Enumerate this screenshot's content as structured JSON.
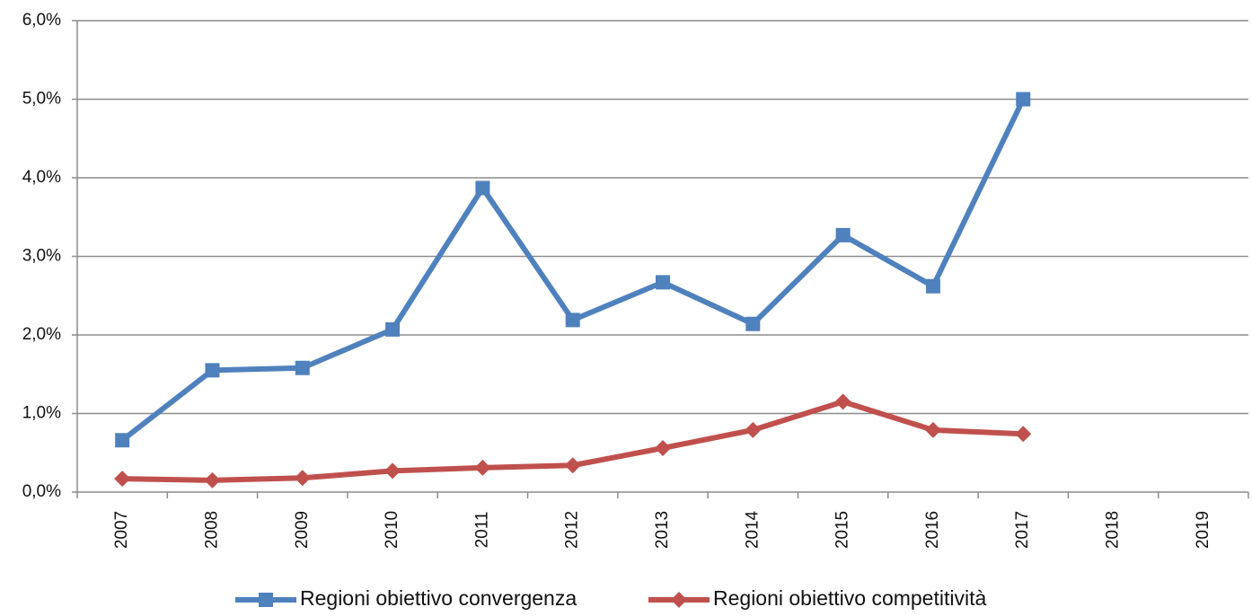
{
  "chart_data": {
    "type": "line",
    "categories": [
      "2007",
      "2008",
      "2009",
      "2010",
      "2011",
      "2012",
      "2013",
      "2014",
      "2015",
      "2016",
      "2017",
      "2018",
      "2019"
    ],
    "series": [
      {
        "name": "Regioni obiettivo convergenza",
        "color": "#4f81bd",
        "marker": "square",
        "values": [
          0.66,
          1.55,
          1.58,
          2.07,
          3.87,
          2.19,
          2.67,
          2.14,
          3.27,
          2.62,
          5.0,
          null,
          null
        ]
      },
      {
        "name": "Regioni obiettivo competitività",
        "color": "#c0504d",
        "marker": "diamond",
        "values": [
          0.17,
          0.15,
          0.18,
          0.27,
          0.31,
          0.34,
          0.56,
          0.79,
          1.15,
          0.79,
          0.74,
          null,
          null
        ]
      }
    ],
    "ylim": [
      0,
      6
    ],
    "yticks": [
      {
        "value": 0,
        "label": "0,0%"
      },
      {
        "value": 1,
        "label": "1,0%"
      },
      {
        "value": 2,
        "label": "2,0%"
      },
      {
        "value": 3,
        "label": "3,0%"
      },
      {
        "value": 4,
        "label": "4,0%"
      },
      {
        "value": 5,
        "label": "5,0%"
      },
      {
        "value": 6,
        "label": "6,0%"
      }
    ],
    "grid": true,
    "legend": "bottom"
  }
}
